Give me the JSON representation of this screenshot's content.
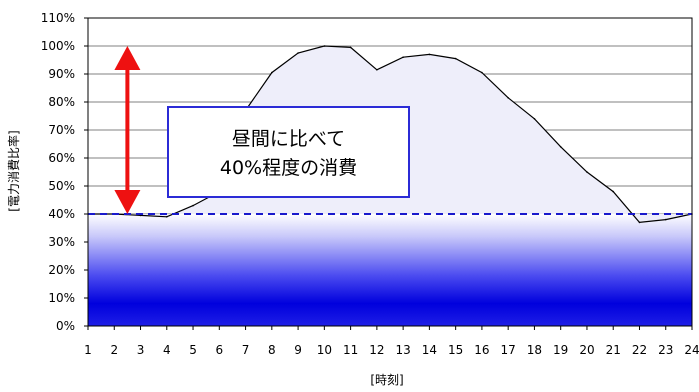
{
  "chart_data": {
    "type": "area",
    "title": "",
    "xlabel": "[時刻]",
    "ylabel": "[電力消費比率]",
    "x": [
      1,
      2,
      3,
      4,
      5,
      6,
      7,
      8,
      9,
      10,
      11,
      12,
      13,
      14,
      15,
      16,
      17,
      18,
      19,
      20,
      21,
      22,
      23,
      24
    ],
    "xtick_labels": [
      "1",
      "2",
      "3",
      "4",
      "5",
      "6",
      "7",
      "8",
      "9",
      "10",
      "11",
      "12",
      "13",
      "14",
      "15",
      "16",
      "17",
      "18",
      "19",
      "20",
      "21",
      "22",
      "23",
      "24"
    ],
    "series": [
      {
        "values": [
          40,
          40,
          39.5,
          39,
          43,
          48,
          77,
          90.5,
          97.5,
          100,
          99.5,
          91.5,
          96,
          97,
          95.5,
          90.5,
          81.5,
          74,
          64,
          55,
          48,
          37,
          38,
          40
        ],
        "color": "#000000",
        "fill": "#eeeefa"
      }
    ],
    "ylim": [
      0,
      110
    ],
    "yticks": [
      0,
      10,
      20,
      30,
      40,
      50,
      60,
      70,
      80,
      90,
      100,
      110
    ],
    "ytick_labels": [
      "0%",
      "10%",
      "20%",
      "30%",
      "40%",
      "50%",
      "60%",
      "70%",
      "80%",
      "90%",
      "100%",
      "110%"
    ],
    "grid": true,
    "legend": "none",
    "reference_line": {
      "value": 40,
      "color": "#1a1acc",
      "style": "dashed"
    },
    "band_fill": {
      "from": 0,
      "to": 40,
      "color": "#0000dd"
    },
    "arrow": {
      "x": 2.5,
      "from": 40,
      "to": 100,
      "color": "#ee1111"
    },
    "annotation": {
      "lines": [
        "昼間に比べて",
        "40%程度の消費"
      ],
      "border_color": "#2b2bd6"
    }
  }
}
